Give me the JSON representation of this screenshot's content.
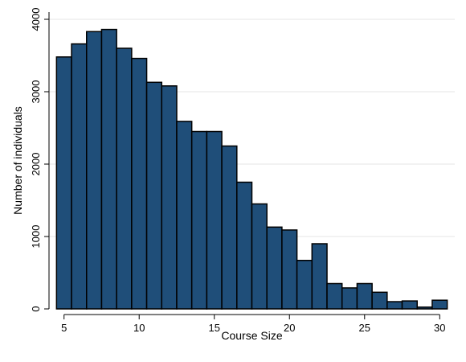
{
  "chart_data": {
    "type": "bar",
    "title": "",
    "xlabel": "Course Size",
    "ylabel": "Number of individuals",
    "xlim": [
      4,
      31
    ],
    "ylim": [
      0,
      4100
    ],
    "x_ticks": [
      5,
      10,
      15,
      20,
      25,
      30
    ],
    "y_ticks": [
      0,
      1000,
      2000,
      3000,
      4000
    ],
    "grid": "horizontal",
    "legend": "none",
    "bar_color": "#1f4e79",
    "bar_edge_color": "#000000",
    "bar_width": 1,
    "x": [
      5,
      6,
      7,
      8,
      9,
      10,
      11,
      12,
      13,
      14,
      15,
      16,
      17,
      18,
      19,
      20,
      21,
      22,
      23,
      24,
      25,
      26,
      27,
      28,
      29,
      30
    ],
    "values": [
      3480,
      3660,
      3830,
      3860,
      3600,
      3460,
      3130,
      3080,
      2590,
      2450,
      2450,
      2250,
      1750,
      1450,
      1130,
      1090,
      670,
      900,
      350,
      290,
      350,
      230,
      100,
      110,
      25,
      120
    ]
  }
}
